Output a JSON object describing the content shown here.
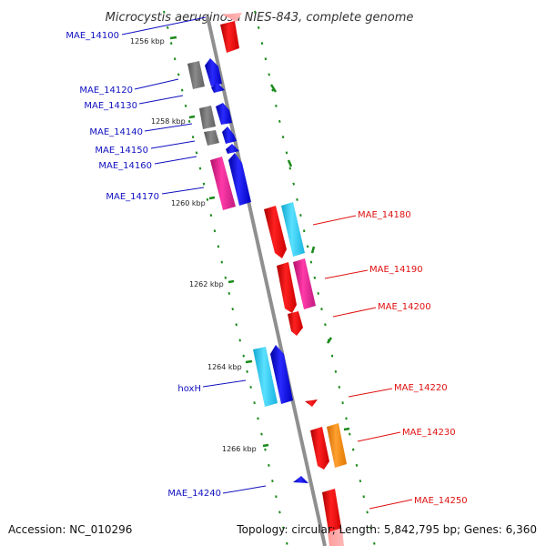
{
  "title": "Microcystis aeruginosa NIES-843, complete genome",
  "footer": {
    "accession": "Accession: NC_010296",
    "topology": "Topology: circular; Length: 5,842,795 bp; Genes: 6,360"
  },
  "kbp_ticks": [
    "1256 kbp",
    "1258 kbp",
    "1260 kbp",
    "1262 kbp",
    "1264 kbp",
    "1266 kbp"
  ],
  "colors": {
    "axis": "#999999",
    "tick": "#1a8a1a",
    "left_label": "#1010c0",
    "right_label": "#e01010",
    "gray_gene": "#777777",
    "blue_gene": "#1010ee",
    "magenta_gene": "#e0209a",
    "red_gene": "#ee1111",
    "cyan_gene": "#30d0f0",
    "orange_gene": "#ff8c10"
  },
  "gene_labels_left": [
    "MAE_14100",
    "MAE_14120",
    "MAE_14130",
    "MAE_14140",
    "MAE_14150",
    "MAE_14160",
    "MAE_14170",
    "hoxH",
    "MAE_14240"
  ],
  "gene_labels_right": [
    "MAE_14180",
    "MAE_14190",
    "MAE_14200",
    "MAE_14220",
    "MAE_14230",
    "MAE_14250"
  ]
}
